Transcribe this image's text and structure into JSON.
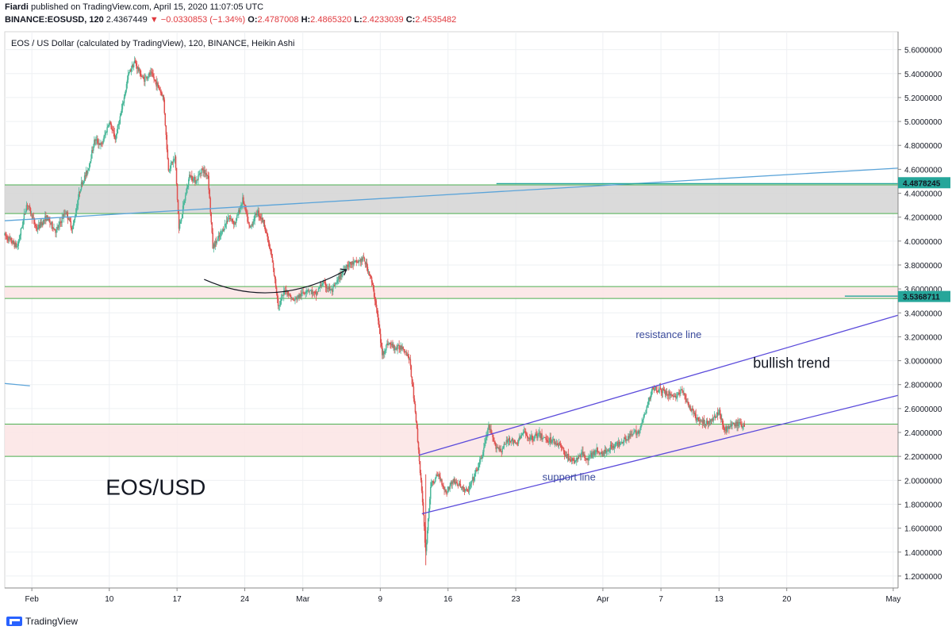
{
  "header": {
    "author": "Fiardi",
    "published": "published on TradingView.com, April 15, 2020 11:07:05 UTC",
    "symbol": "BINANCE:EOSUSD, 120",
    "last": "2.4367449",
    "change": "▼ −0.0330853 (−1.34%)",
    "o_label": "O:",
    "o_value": "2.4787008",
    "h_label": "H:",
    "h_value": "2.4865320",
    "l_label": "L:",
    "l_value": "2.4233039",
    "c_label": "C:",
    "c_value": "2.4535482"
  },
  "footer": {
    "brand": "TradingView"
  },
  "chart_data": {
    "type": "candlestick",
    "title": "EOS / US Dollar (calculated by TradingView), 120, BINANCE, Heikin Ashi",
    "ylim": [
      1.1,
      5.75
    ],
    "y_ticks": [
      "1.2000000",
      "1.4000000",
      "1.6000000",
      "1.8000000",
      "2.0000000",
      "2.2000000",
      "2.4000000",
      "2.6000000",
      "2.8000000",
      "3.0000000",
      "3.2000000",
      "3.4000000",
      "3.6000000",
      "3.8000000",
      "4.0000000",
      "4.2000000",
      "4.4000000",
      "4.6000000",
      "4.8000000",
      "5.0000000",
      "5.2000000",
      "5.4000000",
      "5.6000000"
    ],
    "x_ticks": [
      {
        "day": 2,
        "label": "Feb"
      },
      {
        "day": 10,
        "label": "10"
      },
      {
        "day": 17,
        "label": "17"
      },
      {
        "day": 24,
        "label": "24"
      },
      {
        "day": 30,
        "label": "Mar"
      },
      {
        "day": 38,
        "label": "9"
      },
      {
        "day": 45,
        "label": "16"
      },
      {
        "day": 52,
        "label": "23"
      },
      {
        "day": 61,
        "label": "Apr"
      },
      {
        "day": 67,
        "label": "7"
      },
      {
        "day": 73,
        "label": "13"
      },
      {
        "day": 80,
        "label": "20"
      },
      {
        "day": 91,
        "label": "May"
      }
    ],
    "xlim": [
      -0.8,
      91.5
    ],
    "price_labels": [
      {
        "value": 4.4878245,
        "label": "4.4878245",
        "color": "#26a69a"
      },
      {
        "value": 3.5368711,
        "label": "3.5368711",
        "color": "#26a69a"
      }
    ],
    "zones": [
      {
        "from": 4.23,
        "to": 4.47,
        "fill": "#d3d3d3",
        "border": "#4caf50"
      },
      {
        "from": 3.52,
        "to": 3.62,
        "fill": "#fce4e4",
        "border": "#4caf50"
      },
      {
        "from": 2.2,
        "to": 2.47,
        "fill": "#fce4e4",
        "border": "#4caf50"
      }
    ],
    "lines": [
      {
        "x1": -0.8,
        "y1": 4.17,
        "x2": 91.5,
        "y2": 4.61,
        "color": "#5ba4d9"
      },
      {
        "x1": 42.0,
        "y1": 2.21,
        "x2": 91.5,
        "y2": 3.38,
        "color": "#5b4bdb"
      },
      {
        "x1": 42.3,
        "y1": 1.72,
        "x2": 91.5,
        "y2": 2.71,
        "color": "#5b4bdb"
      },
      {
        "x1": -0.8,
        "y1": 2.81,
        "x2": 1.8,
        "y2": 2.79,
        "color": "#5ba4d9"
      },
      {
        "x1": 50.0,
        "y1": 4.48,
        "x2": 91.5,
        "y2": 4.48,
        "color": "#26a69a"
      },
      {
        "x1": 86.0,
        "y1": 3.54,
        "x2": 91.5,
        "y2": 3.54,
        "color": "#26a69a"
      }
    ],
    "arrow_curve": {
      "from": [
        19.8,
        3.68
      ],
      "control": [
        27.0,
        3.42
      ],
      "to": [
        34.5,
        3.76
      ]
    },
    "annotations": [
      {
        "text": "resistance line",
        "day": 67.8,
        "value": 3.19,
        "size": 13,
        "color": "#3b4b9c"
      },
      {
        "text": "bullish trend",
        "day": 80.5,
        "value": 2.94,
        "size": 18,
        "color": "#131722"
      },
      {
        "text": "support line",
        "day": 57.5,
        "value": 2.0,
        "size": 13,
        "color": "#3b4b9c"
      },
      {
        "text": "EOS/USD",
        "day": 14.8,
        "value": 1.88,
        "size": 28,
        "color": "#131722"
      }
    ],
    "price_path": [
      [
        -0.8,
        4.05
      ],
      [
        0.5,
        3.95
      ],
      [
        1.5,
        4.32
      ],
      [
        2.5,
        4.1
      ],
      [
        3.5,
        4.2
      ],
      [
        4.5,
        4.08
      ],
      [
        5.5,
        4.25
      ],
      [
        6.2,
        4.1
      ],
      [
        7.0,
        4.45
      ],
      [
        7.8,
        4.6
      ],
      [
        8.5,
        4.85
      ],
      [
        9.2,
        4.8
      ],
      [
        10.0,
        5.0
      ],
      [
        10.6,
        4.85
      ],
      [
        11.3,
        5.1
      ],
      [
        12.0,
        5.4
      ],
      [
        12.6,
        5.5
      ],
      [
        13.5,
        5.35
      ],
      [
        14.3,
        5.4
      ],
      [
        15.0,
        5.3
      ],
      [
        15.6,
        5.2
      ],
      [
        16.1,
        4.6
      ],
      [
        16.8,
        4.7
      ],
      [
        17.2,
        4.1
      ],
      [
        17.8,
        4.35
      ],
      [
        18.3,
        4.55
      ],
      [
        19.0,
        4.5
      ],
      [
        19.5,
        4.6
      ],
      [
        20.2,
        4.55
      ],
      [
        20.7,
        3.95
      ],
      [
        21.5,
        4.05
      ],
      [
        22.3,
        4.2
      ],
      [
        23.0,
        4.15
      ],
      [
        23.8,
        4.35
      ],
      [
        24.5,
        4.1
      ],
      [
        25.3,
        4.25
      ],
      [
        26.0,
        4.15
      ],
      [
        26.8,
        3.85
      ],
      [
        27.5,
        3.45
      ],
      [
        28.2,
        3.6
      ],
      [
        29.0,
        3.5
      ],
      [
        29.8,
        3.55
      ],
      [
        30.5,
        3.6
      ],
      [
        31.3,
        3.55
      ],
      [
        32.0,
        3.65
      ],
      [
        33.0,
        3.58
      ],
      [
        33.8,
        3.7
      ],
      [
        34.5,
        3.8
      ],
      [
        35.5,
        3.82
      ],
      [
        36.3,
        3.85
      ],
      [
        37.0,
        3.7
      ],
      [
        37.6,
        3.45
      ],
      [
        38.2,
        3.05
      ],
      [
        38.8,
        3.15
      ],
      [
        39.6,
        3.1
      ],
      [
        40.3,
        3.12
      ],
      [
        41.0,
        3.02
      ],
      [
        41.6,
        2.6
      ],
      [
        42.2,
        2.0
      ],
      [
        42.7,
        1.4
      ],
      [
        43.2,
        1.95
      ],
      [
        44.0,
        2.05
      ],
      [
        44.8,
        1.9
      ],
      [
        45.5,
        2.0
      ],
      [
        46.3,
        1.95
      ],
      [
        47.0,
        1.9
      ],
      [
        47.8,
        2.05
      ],
      [
        48.5,
        2.2
      ],
      [
        49.2,
        2.45
      ],
      [
        49.8,
        2.3
      ],
      [
        50.5,
        2.25
      ],
      [
        51.3,
        2.35
      ],
      [
        52.0,
        2.3
      ],
      [
        52.8,
        2.4
      ],
      [
        53.5,
        2.35
      ],
      [
        54.3,
        2.38
      ],
      [
        55.0,
        2.35
      ],
      [
        55.8,
        2.33
      ],
      [
        56.5,
        2.3
      ],
      [
        57.3,
        2.2
      ],
      [
        58.0,
        2.15
      ],
      [
        58.8,
        2.22
      ],
      [
        59.5,
        2.18
      ],
      [
        60.3,
        2.25
      ],
      [
        61.0,
        2.22
      ],
      [
        61.8,
        2.28
      ],
      [
        62.5,
        2.3
      ],
      [
        63.3,
        2.35
      ],
      [
        64.0,
        2.38
      ],
      [
        64.8,
        2.42
      ],
      [
        65.5,
        2.6
      ],
      [
        66.2,
        2.78
      ],
      [
        67.0,
        2.75
      ],
      [
        67.8,
        2.72
      ],
      [
        68.5,
        2.7
      ],
      [
        69.2,
        2.75
      ],
      [
        70.0,
        2.6
      ],
      [
        70.8,
        2.5
      ],
      [
        71.5,
        2.48
      ],
      [
        72.3,
        2.5
      ],
      [
        73.0,
        2.58
      ],
      [
        73.6,
        2.42
      ],
      [
        74.3,
        2.46
      ],
      [
        75.0,
        2.47
      ],
      [
        75.7,
        2.46
      ]
    ]
  }
}
